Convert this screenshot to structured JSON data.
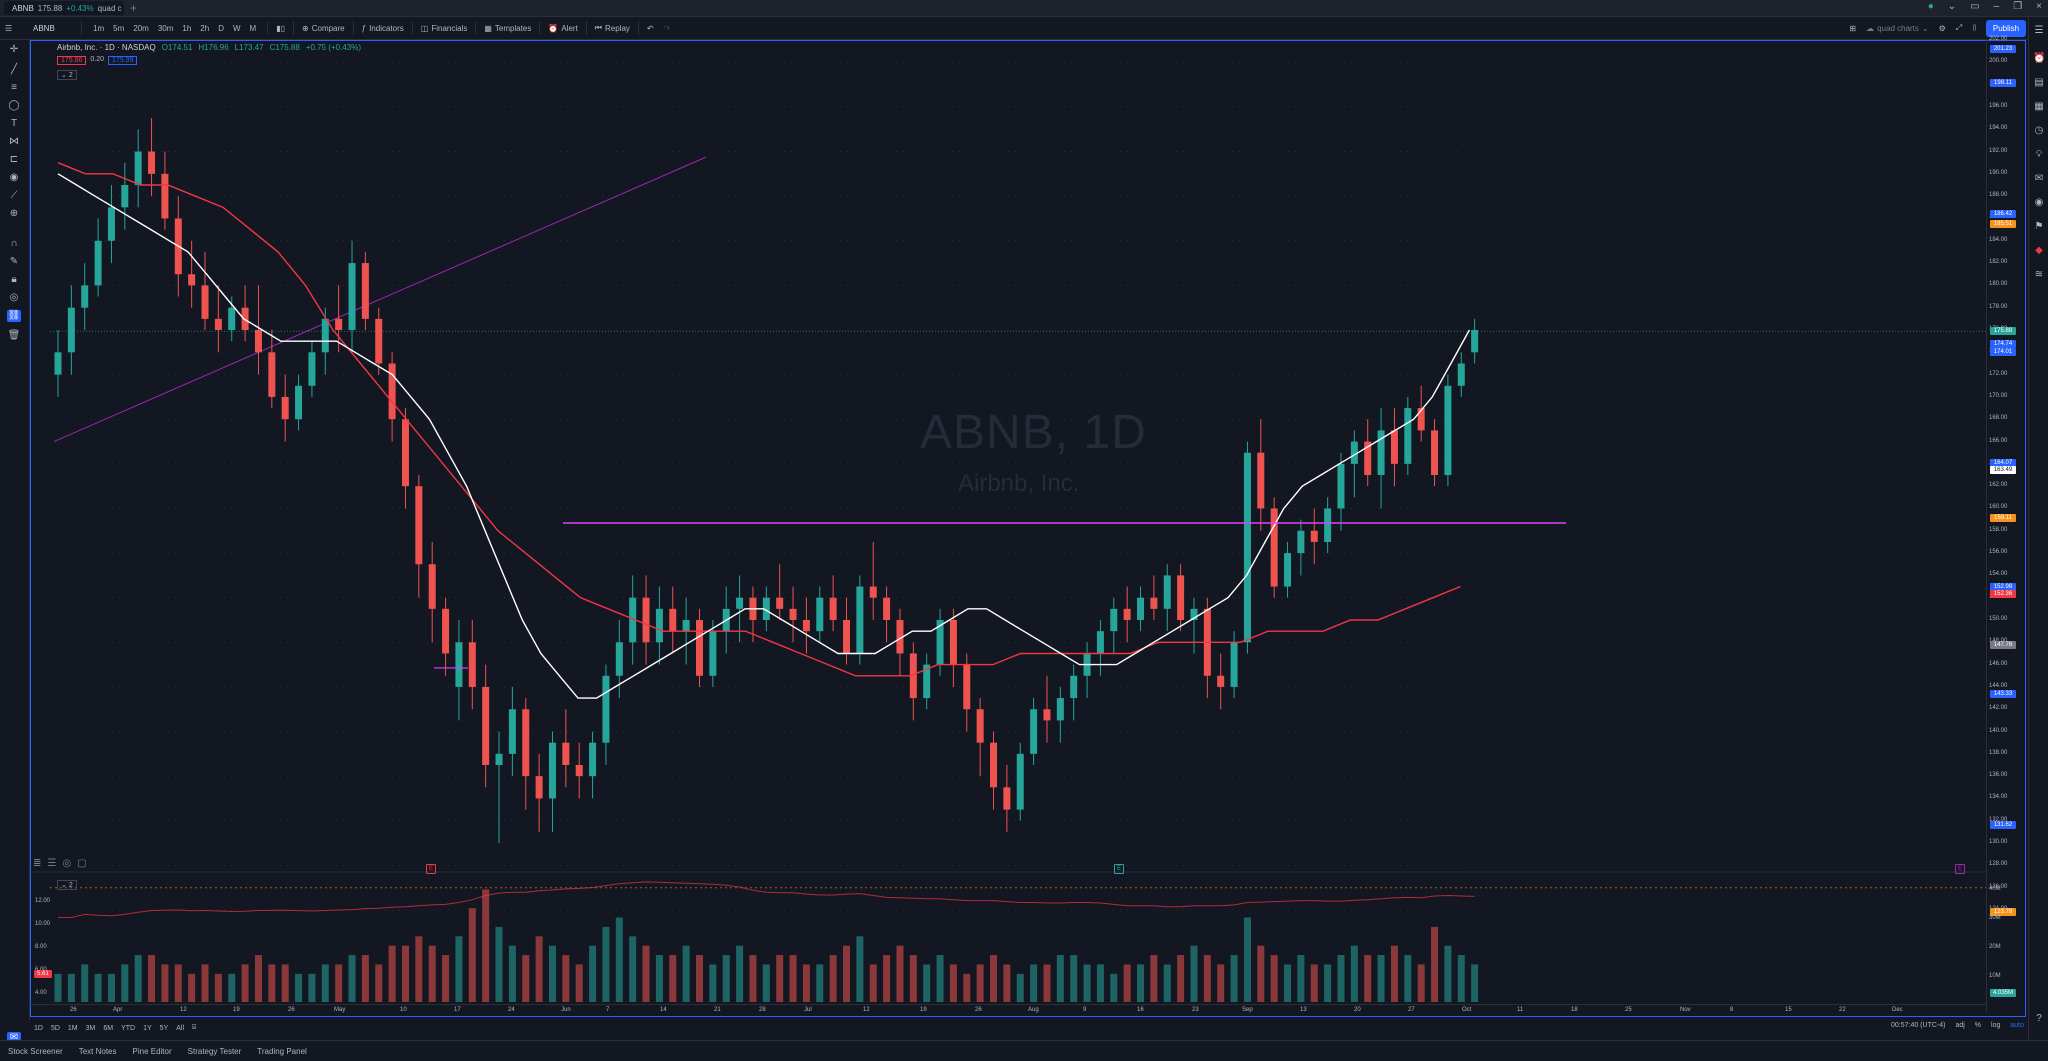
{
  "tab": {
    "symbol": "ABNB",
    "price": "175.88",
    "change": "+0.43%",
    "suffix": "quad c"
  },
  "toolbar": {
    "symbol": "ABNB",
    "intervals": [
      "1m",
      "5m",
      "20m",
      "30m",
      "1h",
      "2h",
      "D",
      "W",
      "M"
    ],
    "compare": "Compare",
    "indicators": "Indicators",
    "financials": "Financials",
    "templates": "Templates",
    "alert": "Alert",
    "replay": "Replay",
    "layout_name": "quad charts",
    "publish": "Publish"
  },
  "legend": {
    "name": "Airbnb, Inc. · 1D · NASDAQ",
    "o": "O174.51",
    "h": "H176.96",
    "l": "L173.47",
    "c": "C175.88",
    "chg": "+0.75 (+0.43%)",
    "bid": "175.86",
    "spread": "0.20",
    "ask": "175.99",
    "indicator_badge": "2",
    "vol_badge": "2"
  },
  "watermark": {
    "symbol": "ABNB, 1D",
    "name": "Airbnb, Inc."
  },
  "colors": {
    "bg": "#131722",
    "up": "#26a69a",
    "down": "#ef5350",
    "ma_fast": "#ffffff",
    "ma_slow": "#f23645",
    "hline": "#e040fb",
    "trend": "#9c27b0",
    "accent": "#2962ff"
  },
  "price_axis": {
    "ticks": [
      "202.00",
      "200.00",
      "198.00",
      "196.00",
      "194.00",
      "192.00",
      "190.00",
      "188.00",
      "186.00",
      "184.00",
      "182.00",
      "180.00",
      "178.00",
      "176.00",
      "174.00",
      "172.00",
      "170.00",
      "168.00",
      "166.00",
      "164.00",
      "162.00",
      "160.00",
      "158.00",
      "156.00",
      "154.00",
      "152.00",
      "150.00",
      "148.00",
      "146.00",
      "144.00",
      "142.00",
      "140.00",
      "138.00",
      "136.00",
      "134.00",
      "132.00",
      "130.00",
      "128.00",
      "126.00",
      "124.00"
    ],
    "badges": [
      {
        "text": "201.23",
        "color": "#2962ff"
      },
      {
        "text": "198.11",
        "color": "#2962ff"
      },
      {
        "text": "185.51",
        "color": "#f7931a"
      },
      {
        "text": "186.42",
        "color": "#2962ff"
      },
      {
        "text": "175.88",
        "color": "#26a69a"
      },
      {
        "text": "174.74",
        "color": "#2962ff"
      },
      {
        "text": "174.01",
        "color": "#2962ff"
      },
      {
        "text": "164.07",
        "color": "#2962ff"
      },
      {
        "text": "163.49",
        "color": "#ffffff"
      },
      {
        "text": "159.11",
        "color": "#f7931a"
      },
      {
        "text": "152.98",
        "color": "#2962ff"
      },
      {
        "text": "152.36",
        "color": "#f23645"
      },
      {
        "text": "147.76",
        "color": "#787b86"
      },
      {
        "text": "143.33",
        "color": "#2962ff"
      },
      {
        "text": "131.62",
        "color": "#2962ff"
      },
      {
        "text": "123.78",
        "color": "#f7931a"
      }
    ]
  },
  "vol_axis": {
    "ticks": [
      "12.00",
      "10.00",
      "8.00",
      "6.00",
      "4.00"
    ],
    "last": "5.61",
    "right_ticks": [
      "40M",
      "30M",
      "20M",
      "10M"
    ],
    "right_last": "4.035M"
  },
  "time_axis": [
    "26",
    "Apr",
    "12",
    "19",
    "26",
    "May",
    "10",
    "17",
    "24",
    "Jun",
    "7",
    "14",
    "21",
    "28",
    "Jul",
    "12",
    "19",
    "26",
    "Aug",
    "9",
    "16",
    "23",
    "Sep",
    "13",
    "20",
    "27",
    "Oct",
    "11",
    "18",
    "25",
    "Nov",
    "8",
    "15",
    "22",
    "Dec"
  ],
  "ranges": [
    "1D",
    "5D",
    "1M",
    "3M",
    "6M",
    "YTD",
    "1Y",
    "5Y",
    "All"
  ],
  "statusbar": {
    "time": "00:57:40 (UTC-4)",
    "adj": "adj",
    "pct": "%",
    "log": "log",
    "auto": "auto"
  },
  "bottom_tabs": [
    "Stock Screener",
    "Text Notes",
    "Pine Editor",
    "Strategy Tester",
    "Trading Panel"
  ],
  "chart_data": {
    "type": "candlestick",
    "symbol": "ABNB",
    "interval": "1D",
    "ylim": [
      124,
      202
    ],
    "horizontal_line": 158.7,
    "candles": [
      [
        172,
        176,
        170,
        174
      ],
      [
        174,
        180,
        172,
        178
      ],
      [
        178,
        182,
        176,
        180
      ],
      [
        180,
        186,
        179,
        184
      ],
      [
        184,
        189,
        182,
        187
      ],
      [
        187,
        191,
        185,
        189
      ],
      [
        189,
        194,
        187,
        192
      ],
      [
        192,
        195,
        188,
        190
      ],
      [
        190,
        192,
        185,
        186
      ],
      [
        186,
        188,
        179,
        181
      ],
      [
        181,
        184,
        178,
        180
      ],
      [
        180,
        183,
        176,
        177
      ],
      [
        177,
        180,
        174,
        176
      ],
      [
        176,
        179,
        175,
        178
      ],
      [
        178,
        180,
        175,
        176
      ],
      [
        176,
        180,
        172,
        174
      ],
      [
        174,
        176,
        169,
        170
      ],
      [
        170,
        172,
        166,
        168
      ],
      [
        168,
        172,
        167,
        171
      ],
      [
        171,
        175,
        170,
        174
      ],
      [
        174,
        178,
        172,
        177
      ],
      [
        177,
        180,
        174,
        176
      ],
      [
        176,
        184,
        174,
        182
      ],
      [
        182,
        183,
        176,
        177
      ],
      [
        177,
        178,
        172,
        173
      ],
      [
        173,
        174,
        166,
        168
      ],
      [
        168,
        169,
        160,
        162
      ],
      [
        162,
        163,
        152,
        155
      ],
      [
        155,
        157,
        148,
        151
      ],
      [
        151,
        152,
        145,
        147
      ],
      [
        144,
        150,
        141,
        148
      ],
      [
        148,
        150,
        142,
        144
      ],
      [
        144,
        146,
        135,
        137
      ],
      [
        137,
        140,
        130,
        138
      ],
      [
        138,
        144,
        136,
        142
      ],
      [
        142,
        143,
        133,
        136
      ],
      [
        136,
        138,
        131,
        134
      ],
      [
        134,
        140,
        131,
        139
      ],
      [
        139,
        142,
        135,
        137
      ],
      [
        137,
        139,
        134,
        136
      ],
      [
        136,
        140,
        134,
        139
      ],
      [
        139,
        146,
        137,
        145
      ],
      [
        145,
        150,
        143,
        148
      ],
      [
        148,
        154,
        146,
        152
      ],
      [
        152,
        154,
        146,
        148
      ],
      [
        148,
        153,
        146,
        151
      ],
      [
        151,
        153,
        147,
        149
      ],
      [
        149,
        152,
        146,
        150
      ],
      [
        150,
        151,
        144,
        145
      ],
      [
        145,
        150,
        144,
        149
      ],
      [
        149,
        153,
        147,
        151
      ],
      [
        151,
        154,
        148,
        152
      ],
      [
        152,
        153,
        148,
        150
      ],
      [
        150,
        153,
        149,
        152
      ],
      [
        152,
        155,
        150,
        151
      ],
      [
        151,
        153,
        148,
        150
      ],
      [
        150,
        152,
        147,
        149
      ],
      [
        149,
        153,
        148,
        152
      ],
      [
        152,
        154,
        149,
        150
      ],
      [
        150,
        152,
        146,
        147
      ],
      [
        147,
        154,
        146,
        153
      ],
      [
        153,
        157,
        150,
        152
      ],
      [
        152,
        153,
        148,
        150
      ],
      [
        150,
        151,
        145,
        147
      ],
      [
        147,
        148,
        141,
        143
      ],
      [
        143,
        147,
        142,
        146
      ],
      [
        146,
        151,
        145,
        150
      ],
      [
        150,
        151,
        144,
        146
      ],
      [
        146,
        147,
        140,
        142
      ],
      [
        142,
        143,
        136,
        139
      ],
      [
        139,
        140,
        133,
        135
      ],
      [
        135,
        137,
        131,
        133
      ],
      [
        133,
        139,
        132,
        138
      ],
      [
        138,
        143,
        137,
        142
      ],
      [
        142,
        145,
        139,
        141
      ],
      [
        141,
        144,
        139,
        143
      ],
      [
        143,
        146,
        141,
        145
      ],
      [
        145,
        148,
        143,
        147
      ],
      [
        147,
        150,
        145,
        149
      ],
      [
        149,
        152,
        147,
        151
      ],
      [
        151,
        153,
        148,
        150
      ],
      [
        150,
        153,
        149,
        152
      ],
      [
        152,
        154,
        150,
        151
      ],
      [
        151,
        155,
        149,
        154
      ],
      [
        154,
        155,
        149,
        150
      ],
      [
        150,
        152,
        147,
        151
      ],
      [
        151,
        152,
        143,
        145
      ],
      [
        145,
        147,
        142,
        144
      ],
      [
        144,
        149,
        143,
        148
      ],
      [
        148,
        166,
        147,
        165
      ],
      [
        165,
        168,
        158,
        160
      ],
      [
        160,
        161,
        152,
        153
      ],
      [
        153,
        157,
        152,
        156
      ],
      [
        156,
        159,
        154,
        158
      ],
      [
        158,
        160,
        155,
        157
      ],
      [
        157,
        161,
        156,
        160
      ],
      [
        160,
        165,
        158,
        164
      ],
      [
        164,
        167,
        161,
        166
      ],
      [
        166,
        168,
        162,
        163
      ],
      [
        163,
        169,
        160,
        167
      ],
      [
        167,
        169,
        162,
        164
      ],
      [
        164,
        170,
        163,
        169
      ],
      [
        169,
        171,
        166,
        167
      ],
      [
        167,
        168,
        162,
        163
      ],
      [
        163,
        172,
        162,
        171
      ],
      [
        171,
        174,
        170,
        173
      ],
      [
        174,
        177,
        173,
        176
      ]
    ],
    "ma_fast": [
      190,
      189,
      188,
      187,
      186,
      185,
      184,
      183,
      181,
      179,
      177,
      176,
      175,
      175,
      175,
      175,
      174,
      173,
      172,
      170,
      168,
      165,
      162,
      158,
      154,
      150,
      147,
      145,
      143,
      143,
      144,
      145,
      146,
      147,
      148,
      149,
      150,
      151,
      151,
      150,
      149,
      148,
      147,
      147,
      147,
      148,
      149,
      149,
      150,
      151,
      151,
      150,
      149,
      148,
      147,
      146,
      146,
      146,
      147,
      148,
      149,
      150,
      151,
      152,
      154,
      157,
      160,
      162,
      163,
      164,
      165,
      166,
      167,
      168,
      170,
      173,
      176
    ],
    "ma_slow": [
      191,
      190,
      190,
      189,
      189,
      188,
      187,
      185,
      183,
      180,
      176,
      173,
      170,
      167,
      164,
      161,
      158,
      156,
      154,
      152,
      151,
      150,
      149,
      149,
      149,
      149,
      148,
      147,
      146,
      145,
      145,
      145,
      146,
      146,
      146,
      147,
      147,
      147,
      147,
      147,
      148,
      148,
      148,
      148,
      149,
      149,
      149,
      150,
      150,
      151,
      152,
      153
    ],
    "volume_m": [
      3,
      3,
      4,
      3,
      3,
      4,
      5,
      5,
      4,
      4,
      3,
      4,
      3,
      3,
      4,
      5,
      4,
      4,
      3,
      3,
      4,
      4,
      5,
      5,
      4,
      6,
      6,
      7,
      6,
      5,
      7,
      10,
      12,
      8,
      6,
      5,
      7,
      6,
      5,
      4,
      6,
      8,
      9,
      7,
      6,
      5,
      5,
      6,
      5,
      4,
      5,
      6,
      5,
      4,
      5,
      5,
      4,
      4,
      5,
      6,
      7,
      4,
      5,
      6,
      5,
      4,
      5,
      4,
      3,
      4,
      5,
      4,
      3,
      4,
      4,
      5,
      5,
      4,
      4,
      3,
      4,
      4,
      5,
      4,
      5,
      6,
      5,
      4,
      5,
      9,
      6,
      5,
      4,
      5,
      4,
      4,
      5,
      6,
      5,
      5,
      6,
      5,
      4,
      8,
      6,
      5,
      4
    ]
  }
}
